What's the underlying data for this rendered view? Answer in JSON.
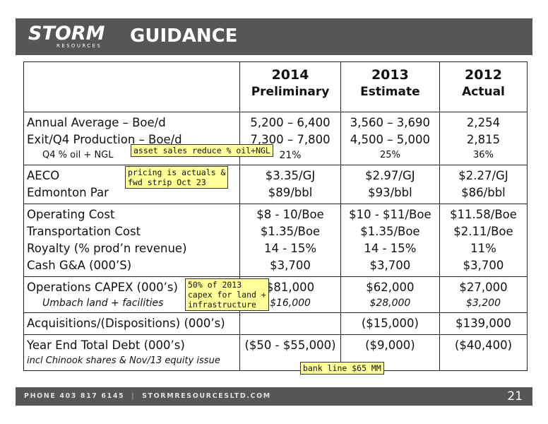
{
  "header": {
    "logo_main": "STORM",
    "logo_sub": "RESOURCES",
    "title": "GUIDANCE"
  },
  "columns": [
    {
      "year": "2014",
      "label": "Preliminary"
    },
    {
      "year": "2013",
      "label": "Estimate"
    },
    {
      "year": "2012",
      "label": "Actual"
    }
  ],
  "rows": {
    "production": {
      "labels": [
        "Annual Average – Boe/d",
        "Exit/Q4 Production – Boe/d",
        "Q4 % oil + NGL"
      ],
      "c2014": [
        "5,200 – 6,400",
        "7,300 – 7,800",
        "21%"
      ],
      "c2013": [
        "3,560 – 3,690",
        "4,500 – 5,000",
        "25%"
      ],
      "c2012": [
        "2,254",
        "2,815",
        "36%"
      ]
    },
    "pricing": {
      "labels": [
        "AECO",
        "Edmonton Par"
      ],
      "c2014": [
        "$3.35/GJ",
        "$89/bbl"
      ],
      "c2013": [
        "$2.97/GJ",
        "$93/bbl"
      ],
      "c2012": [
        "$2.27/GJ",
        "$86/bbl"
      ]
    },
    "costs": {
      "labels": [
        "Operating Cost",
        "Transportation Cost",
        "Royalty (% prod’n revenue)",
        "Cash G&A (000’S)"
      ],
      "c2014": [
        "$8 - 10/Boe",
        "$1.35/Boe",
        "14 - 15%",
        "$3,700"
      ],
      "c2013": [
        "$10 - $11/Boe",
        "$1.35/Boe",
        "14 - 15%",
        "$3,700"
      ],
      "c2012": [
        "$11.58/Boe",
        "$2.11/Boe",
        "11%",
        "$3,700"
      ]
    },
    "capex": {
      "labels": [
        "Operations CAPEX (000’s)",
        "Umbach land + facilities"
      ],
      "c2014": [
        "$81,000",
        "$16,000"
      ],
      "c2013": [
        "$62,000",
        "$28,000"
      ],
      "c2012": [
        "$27,000",
        "$3,200"
      ]
    },
    "acquisitions": {
      "label": "Acquisitions/(Dispositions) (000’s)",
      "c2014": "",
      "c2013": "($15,000)",
      "c2012": "$139,000"
    },
    "debt": {
      "label": "Year End Total Debt (000’s)",
      "sublabel": "incl Chinook shares & Nov/13 equity issue",
      "c2014": "($50 - $55,000)",
      "c2013": "($9,000)",
      "c2012": "($40,400)"
    }
  },
  "notes": {
    "asset_sales": "asset sales reduce % oil+NGL",
    "pricing": [
      "pricing is actuals &",
      "fwd strip Oct 23"
    ],
    "capex": [
      "50% of 2013",
      "capex for land +",
      "infrastructure"
    ],
    "bank_line": "bank line $65 MM"
  },
  "footer": {
    "phone": "PHONE 403 817 6145",
    "website": "STORMRESOURCESLTD.COM",
    "page": "21"
  }
}
